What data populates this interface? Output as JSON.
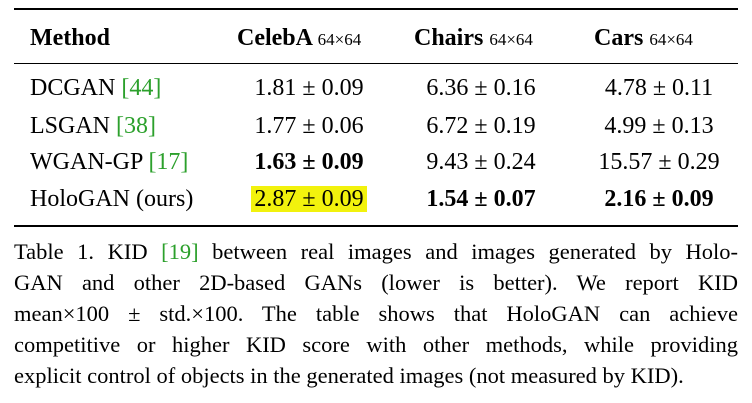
{
  "table": {
    "header": {
      "method": "Method",
      "datasets": [
        {
          "name": "CelebA",
          "size": "64×64"
        },
        {
          "name": "Chairs",
          "size": "64×64"
        },
        {
          "name": "Cars",
          "size": "64×64"
        }
      ]
    },
    "rows": [
      {
        "method": "DCGAN ",
        "cite": "[44]",
        "values": [
          "1.81 ± 0.09",
          "6.36 ± 0.16",
          "4.78 ± 0.11"
        ],
        "bold": [
          false,
          false,
          false
        ]
      },
      {
        "method": "LSGAN ",
        "cite": "[38]",
        "values": [
          "1.77 ± 0.06",
          "6.72 ± 0.19",
          "4.99 ± 0.13"
        ],
        "bold": [
          false,
          false,
          false
        ]
      },
      {
        "method": "WGAN-GP ",
        "cite": "[17]",
        "values": [
          "1.63 ± 0.09",
          "9.43 ± 0.24",
          "15.57 ± 0.29"
        ],
        "bold": [
          true,
          false,
          false
        ]
      },
      {
        "method": "HoloGAN (ours)",
        "cite": "",
        "values": [
          "2.87 ± 0.09",
          "1.54 ± 0.07",
          "2.16 ± 0.09"
        ],
        "bold": [
          false,
          true,
          true
        ],
        "highlight": [
          true,
          false,
          false
        ]
      }
    ]
  },
  "caption": {
    "line1_a": "Table 1. KID ",
    "line1_cite": "[19]",
    "line1_b": " between real images and images generated by Holo-",
    "line2": "GAN and other 2D-based GANs (lower is better). We report KID",
    "line3": "mean×100 ± std.×100. The table shows that HoloGAN can achieve",
    "line4": "competitive or higher KID score with other methods, while providing",
    "line5": "explicit control of objects in the generated images (not measured by KID)."
  },
  "colors": {
    "citation": "#2ca02c",
    "highlight": "#f2f20d"
  }
}
